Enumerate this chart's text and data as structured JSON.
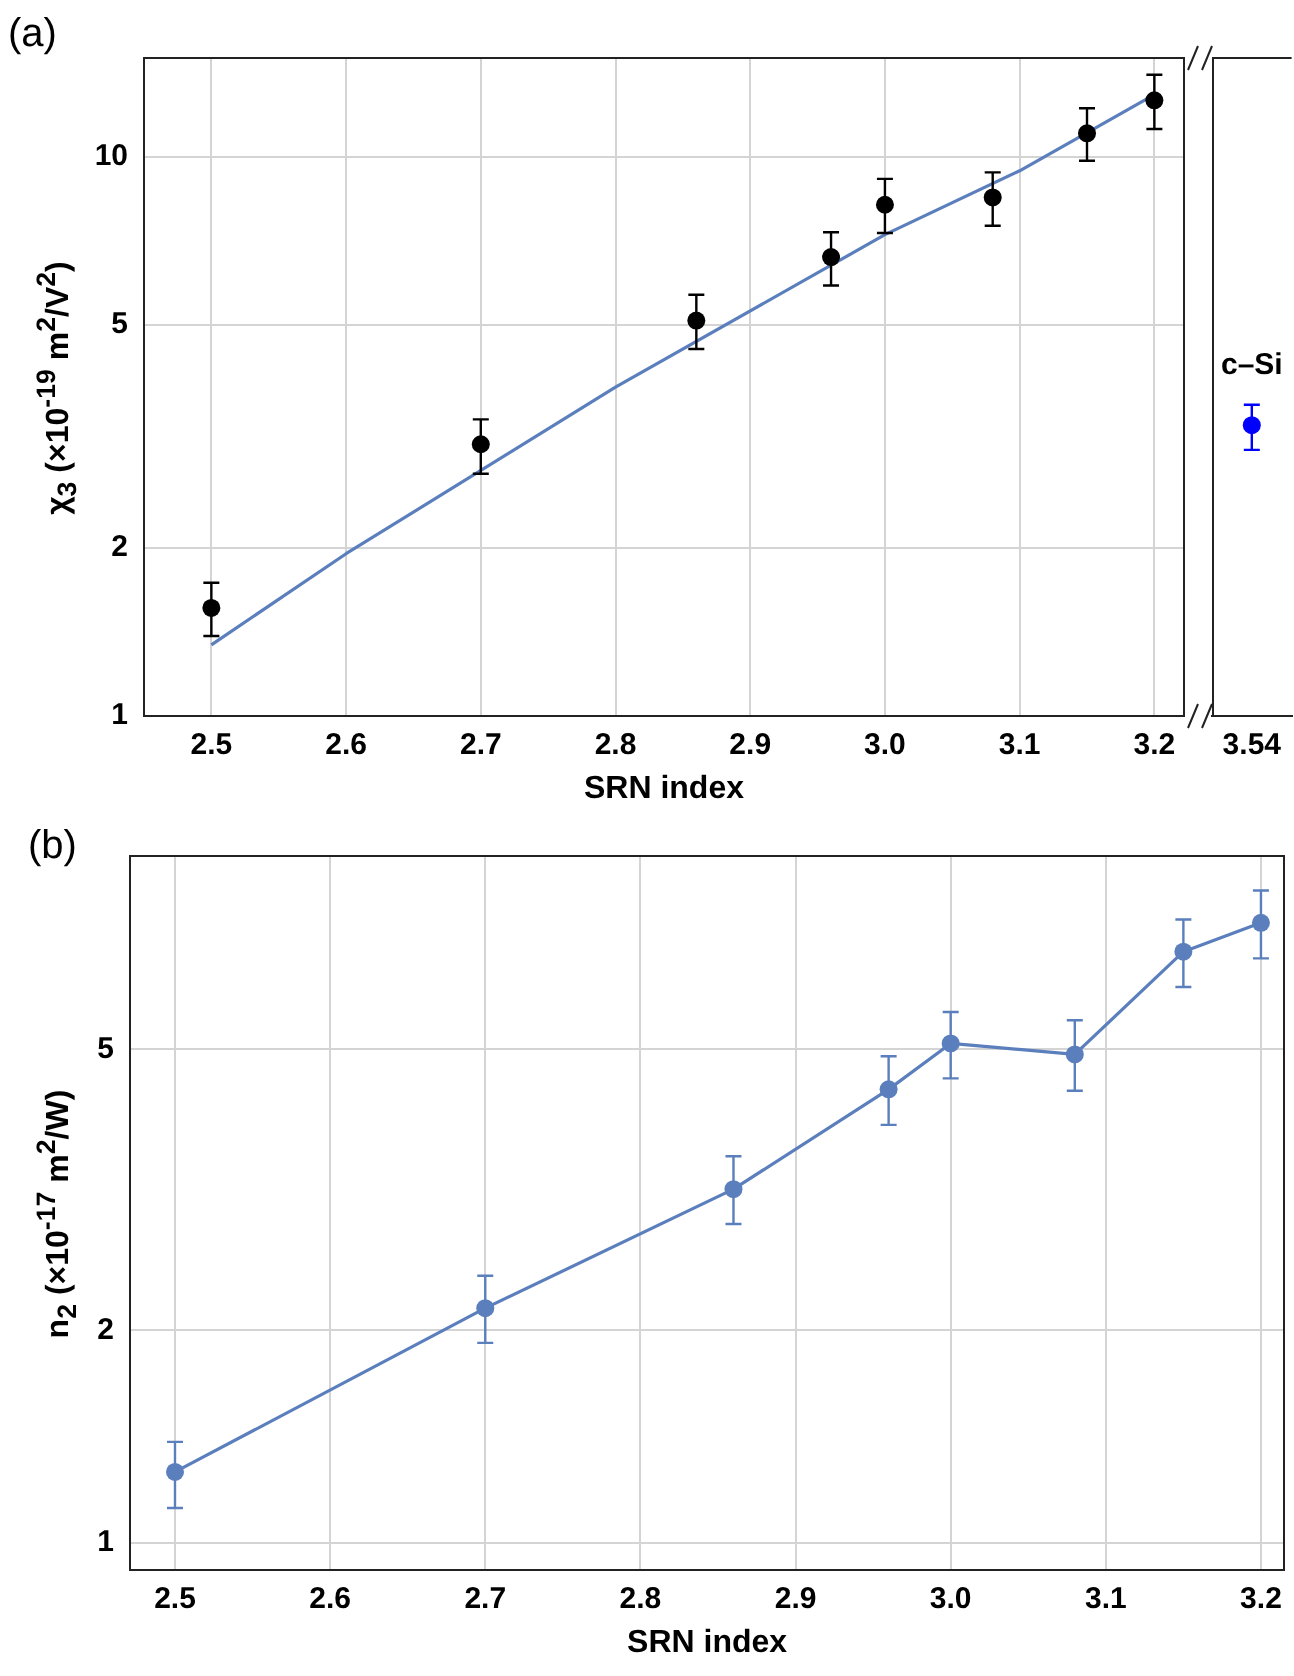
{
  "chart_data": [
    {
      "type": "scatter",
      "title": "(a)",
      "xlabel": "SRN index",
      "ylabel": "χ$_{3}$ (×10$^{-19}$ m$^{2}$/V$^{2}$)",
      "log": true,
      "grid": true,
      "xlim": [
        2.45,
        3.222
      ],
      "ylim": [
        1,
        15
      ],
      "xticks": [
        2.5,
        2.6,
        2.7,
        2.8,
        2.9,
        {
          "value": 3,
          "label": "3.0"
        },
        3.1,
        3.2
      ],
      "yticks": [
        1,
        2,
        5,
        10
      ],
      "series": [
        {
          "marker": "circle",
          "color": "#000000",
          "x": [
            2.5,
            2.7,
            2.86,
            2.96,
            3.0,
            3.08,
            3.15,
            3.2
          ],
          "values": [
            1.56,
            3.06,
            5.09,
            6.61,
            8.2,
            8.45,
            11.0,
            12.6
          ],
          "errors": [
            [
              1.39,
              1.73
            ],
            [
              2.71,
              3.39
            ],
            [
              4.53,
              5.66
            ],
            [
              5.88,
              7.32
            ],
            [
              7.3,
              9.12
            ],
            [
              7.52,
              9.37
            ],
            [
              9.83,
              12.2
            ],
            [
              11.2,
              14.0
            ]
          ]
        },
        {
          "type": "line",
          "marker": "none",
          "color": "#5b7fbd",
          "x": [
            2.5,
            2.6,
            2.8,
            3.0,
            3.1,
            3.2
          ],
          "values": [
            1.34,
            1.95,
            3.87,
            7.25,
            9.43,
            12.9
          ]
        }
      ]
    },
    {
      "type": "scatter",
      "tick_labels": "x",
      "log": true,
      "categories": [
        "3.54"
      ],
      "ylim": [
        1,
        15
      ],
      "annotations": [
        {
          "text": "c–Si",
          "x": "3.54",
          "y": 3.31
        }
      ],
      "series": [
        {
          "marker": "circle",
          "color": "#0000ff",
          "x": [
            "3.54"
          ],
          "values": [
            3.31
          ],
          "errors": [
            [
              2.99,
              3.6
            ]
          ]
        }
      ]
    },
    {
      "type": "line",
      "title": "(b)",
      "xlabel": "SRN index",
      "ylabel": "n$_{2}$ (×10$^{-17}$ m$^{2}$/W)",
      "log": true,
      "grid": true,
      "xlim": [
        2.471,
        3.215
      ],
      "ylim": [
        0.915,
        9.4
      ],
      "xticks": [
        2.5,
        2.6,
        2.7,
        2.8,
        2.9,
        {
          "value": 3,
          "label": "3.0"
        },
        3.1,
        3.2
      ],
      "yticks": [
        1,
        2,
        5
      ],
      "series": [
        {
          "marker": "circle",
          "color": "#5b7fbd",
          "x": [
            2.5,
            2.7,
            2.86,
            2.96,
            3.0,
            3.08,
            3.15,
            3.2
          ],
          "values": [
            1.26,
            2.15,
            3.17,
            4.39,
            5.1,
            4.92,
            6.88,
            7.56
          ],
          "errors": [
            [
              1.12,
              1.39
            ],
            [
              1.92,
              2.39
            ],
            [
              2.83,
              3.53
            ],
            [
              3.91,
              4.89
            ],
            [
              4.55,
              5.65
            ],
            [
              4.37,
              5.5
            ],
            [
              6.13,
              7.64
            ],
            [
              6.73,
              8.4
            ]
          ]
        }
      ]
    }
  ]
}
